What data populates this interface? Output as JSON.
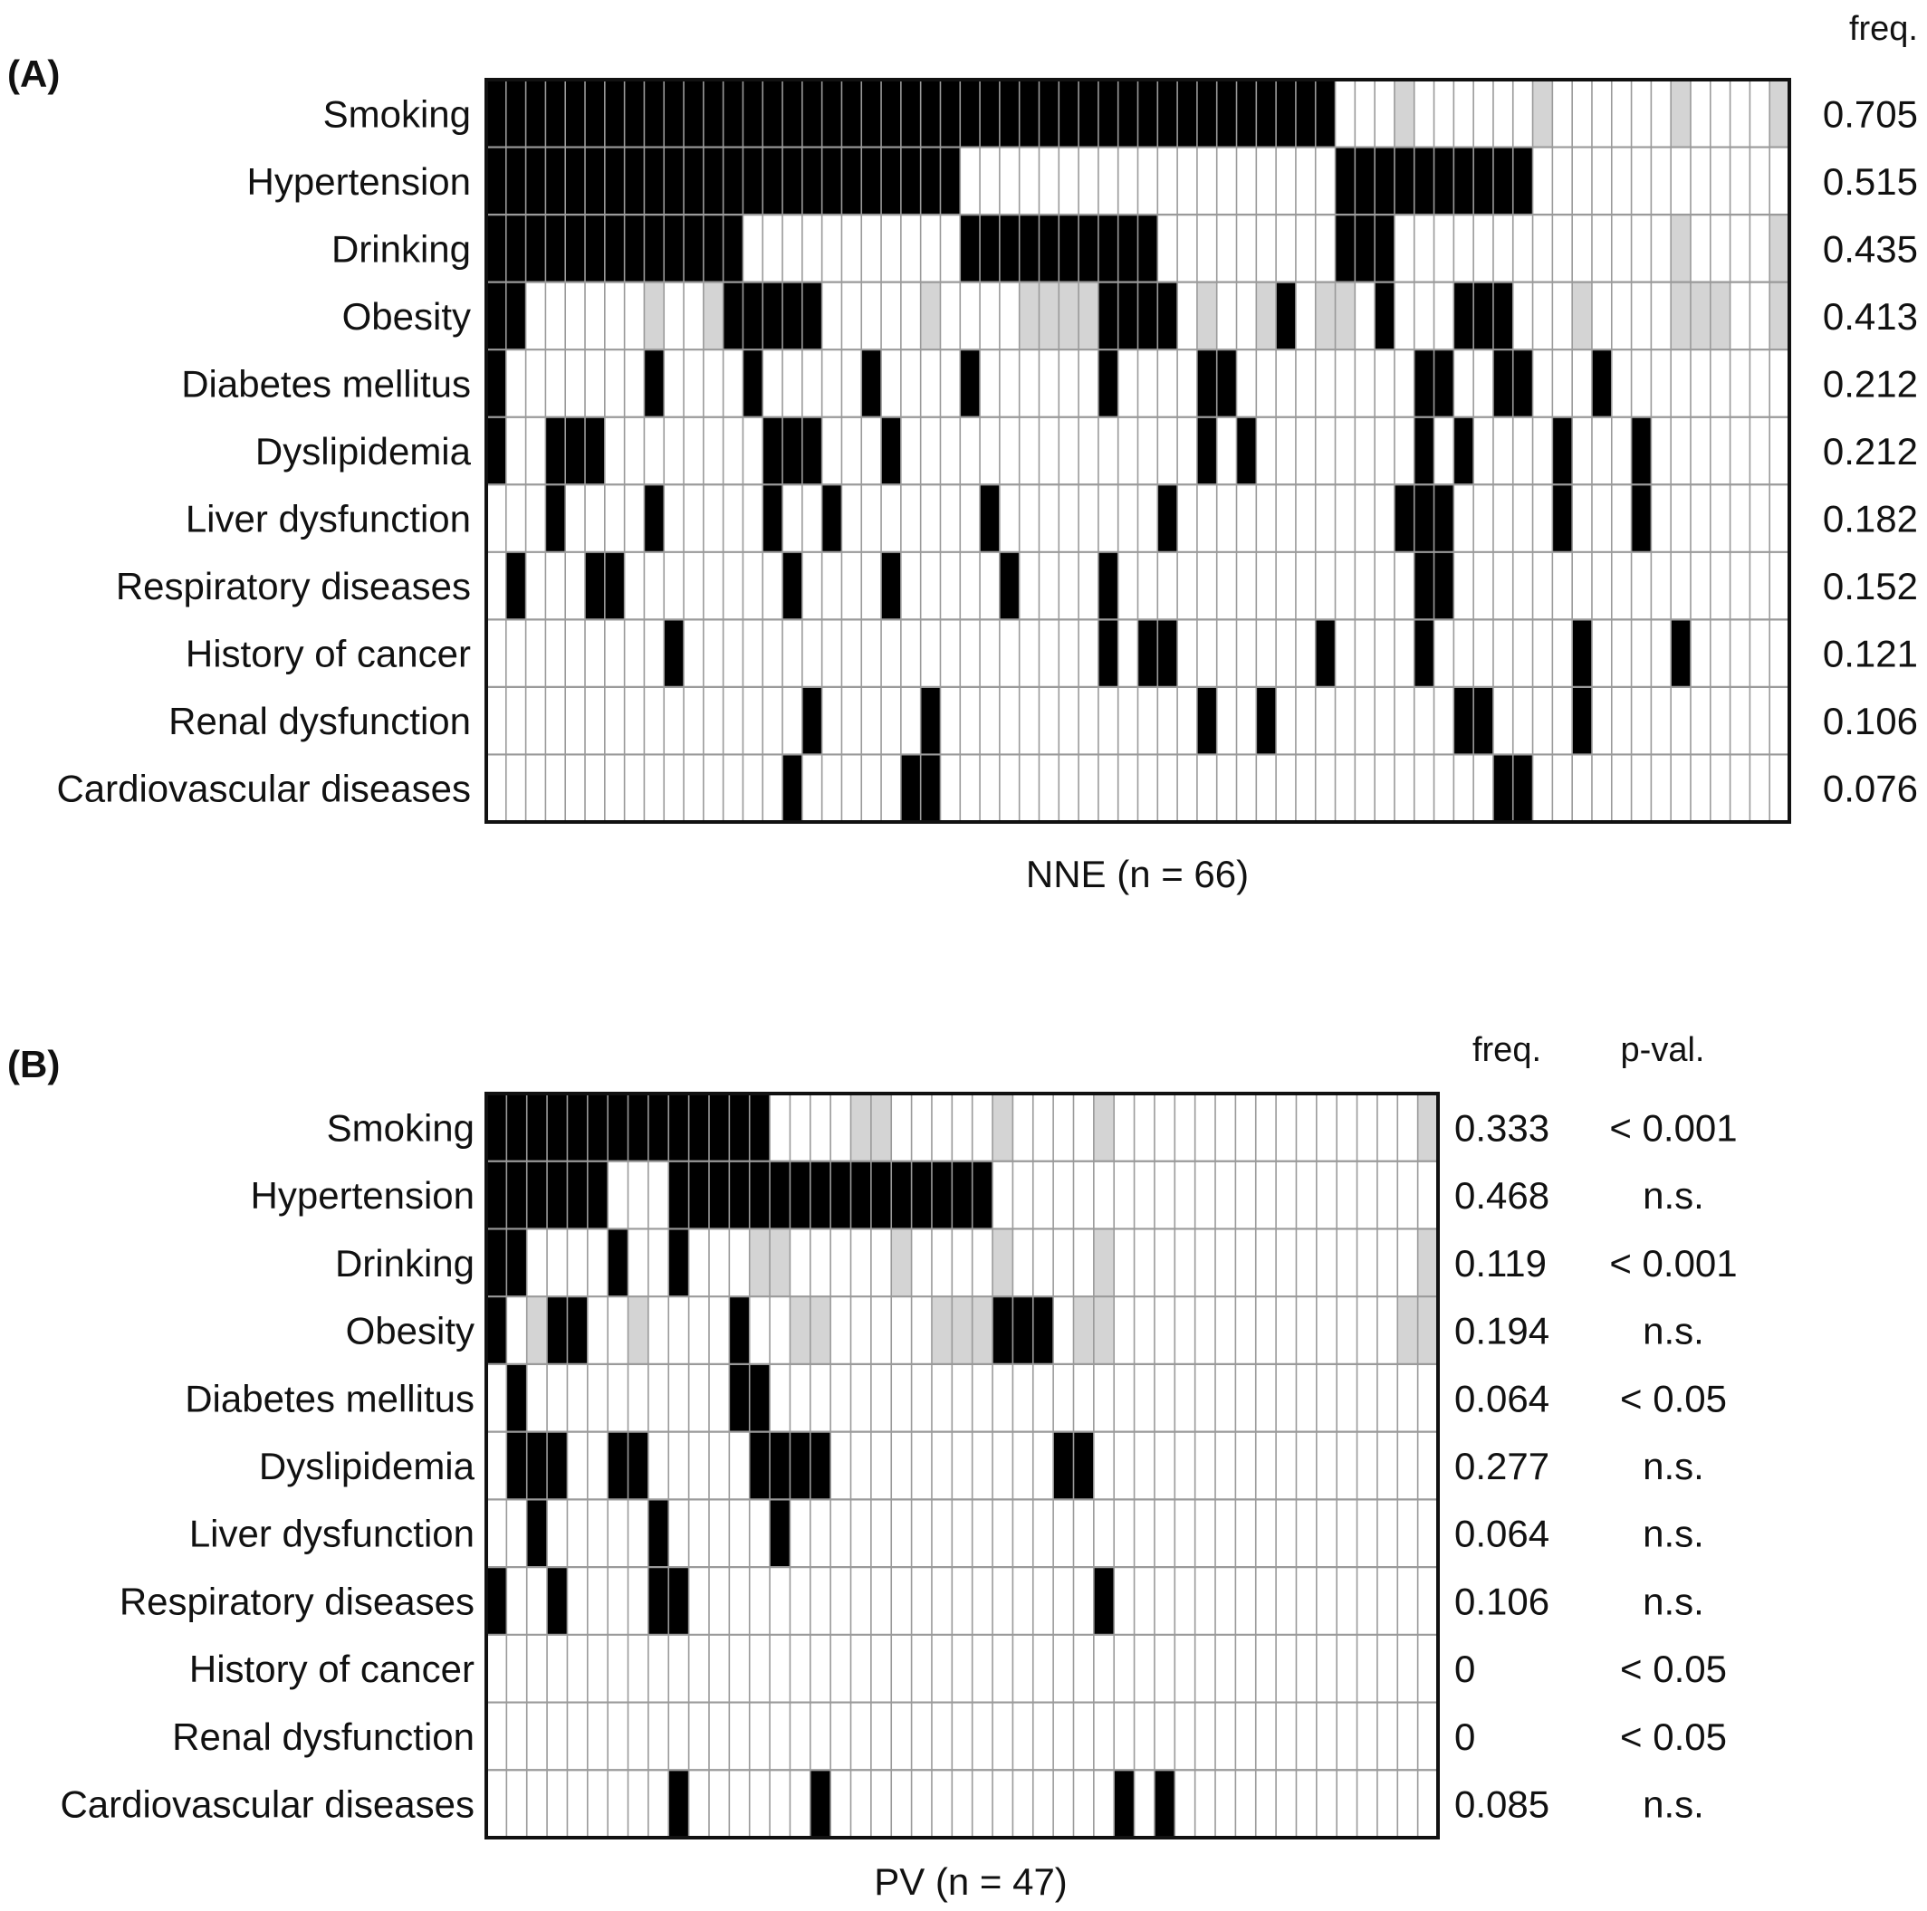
{
  "chart_data": [
    {
      "type": "heatmap",
      "panel_label": "(A)",
      "xlabel": "NNE (n = 66)",
      "columns_header": [
        "freq."
      ],
      "rows": [
        "Smoking",
        "Hypertension",
        "Drinking",
        "Obesity",
        "Diabetes mellitus",
        "Dyslipidemia",
        "Liver dysfunction",
        "Respiratory diseases",
        "History of cancer",
        "Renal dysfunction",
        "Cardiovascular diseases"
      ],
      "freq": [
        "0.705",
        "0.515",
        "0.435",
        "0.413",
        "0.212",
        "0.212",
        "0.182",
        "0.152",
        "0.121",
        "0.106",
        "0.076"
      ],
      "n_columns": 66,
      "cell_values": {
        "0": "absent",
        "1": "present",
        "2": "unknown"
      },
      "legend_colors": {
        "present": "#000000",
        "unknown": "#d4d4d4",
        "absent": "#ffffff"
      },
      "cells": [
        "111111111111111111111111111111111111111111100020000002000000200002",
        "111111111111111111111111000000000000000000011111111110000000000000",
        "111111111111100000000000111111111100000000011100000000000000200002",
        "110000002002111110000020000222211110200210220100011100020000222002",
        "100000001000010000010000100000010000110000000001100110001000000000",
        "100111000000001110001000000000000000101000000001010000100010000000",
        "000100001000001001000000010000000010000000000011100000100010000000",
        "010001100000000100001000001000010000000000000001100000000000000000",
        "000000000100000000000000000000010110000000100001000000010000100000",
        "000000000000000010000010000000000000100100000000011000010000000000",
        "000000000000000100000110000000000000000000000000000110000000000000"
      ]
    },
    {
      "type": "heatmap",
      "panel_label": "(B)",
      "xlabel": "PV (n = 47)",
      "columns_header": [
        "freq.",
        "p-val."
      ],
      "rows": [
        "Smoking",
        "Hypertension",
        "Drinking",
        "Obesity",
        "Diabetes mellitus",
        "Dyslipidemia",
        "Liver dysfunction",
        "Respiratory diseases",
        "History of cancer",
        "Renal dysfunction",
        "Cardiovascular diseases"
      ],
      "freq": [
        "0.333",
        "0.468",
        "0.119",
        "0.194",
        "0.064",
        "0.277",
        "0.064",
        "0.106",
        "0",
        "0",
        "0.085"
      ],
      "p_val": [
        "< 0.001",
        "n.s.",
        "< 0.001",
        "n.s.",
        "< 0.05",
        "n.s.",
        "n.s.",
        "n.s.",
        "< 0.05",
        "< 0.05",
        "n.s."
      ],
      "n_columns": 47,
      "cell_values": {
        "0": "absent",
        "1": "present",
        "2": "unknown"
      },
      "legend_colors": {
        "present": "#000000",
        "unknown": "#d4d4d4",
        "absent": "#ffffff"
      },
      "cells": [
        "11111111111111000022000002000020000000000000002",
        "11111100011111111111111110000000000000000000000",
        "11000010010002200000200002000020000000000000002",
        "10211002000010022000002221110220000000000000022",
        "01000000000011000000000000000000000000000000000",
        "01110011000001111000000000001100000000000000000",
        "00100000100000100000000000000000000000000000000",
        "10010000110000000000000000000010000000000000000",
        "00000000000000000000000000000000000000000000000",
        "00000000000000000000000000000000000000000000000",
        "00000000010000001000000000000001010000000000000"
      ]
    }
  ]
}
